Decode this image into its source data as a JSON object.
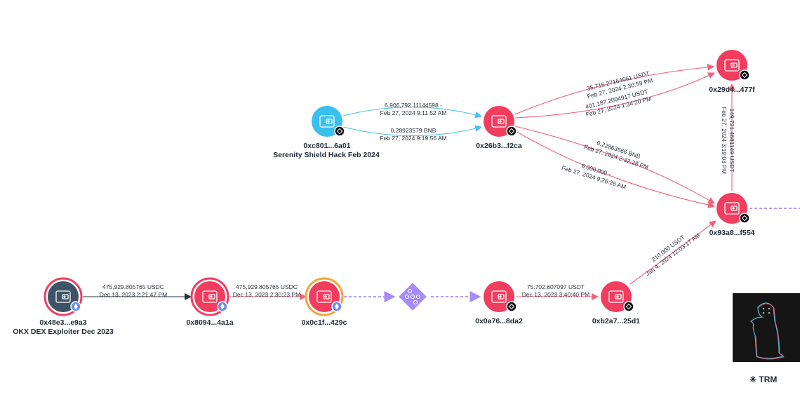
{
  "colors": {
    "exploit": "#f23d5f",
    "source": "#38c0f0",
    "dark": "#3e5466",
    "swap": "#a78bfa",
    "orange": "#f5a33a",
    "edge_red": "#f2607c",
    "edge_blue": "#4cc3ee",
    "edge_dark": "#2b3440"
  },
  "nodes": [
    {
      "id": "c801",
      "address": "0xc801...6a01",
      "entity": "Serenity Shield Hack Feb 2024",
      "type": "source",
      "chain": "bnb-icon"
    },
    {
      "id": "26b3",
      "address": "0x26b3...f2ca",
      "type": "exploit",
      "chain": "bnb-icon"
    },
    {
      "id": "29d4",
      "address": "0x29d4...477f",
      "type": "exploit",
      "chain": "bnb-icon"
    },
    {
      "id": "93a8",
      "address": "0x93a8...f554",
      "type": "exploit",
      "chain": "bnb-icon"
    },
    {
      "id": "48e3",
      "address": "0x48e3...e9a3",
      "entity": "OKX DEX Exploiter Dec 2023",
      "type": "dark",
      "chain": "ethereum-icon"
    },
    {
      "id": "8094",
      "address": "0x8094...4a1a",
      "type": "exploit-ring",
      "chain": "ethereum-icon"
    },
    {
      "id": "0c1f",
      "address": "0x0c1f...429c",
      "type": "orange-ring",
      "chain": "ethereum-icon"
    },
    {
      "id": "swap",
      "address": "",
      "type": "swap"
    },
    {
      "id": "0a76",
      "address": "0x0a76...8da2",
      "type": "exploit",
      "chain": "bnb-icon"
    },
    {
      "id": "b2a7",
      "address": "0xb2a7...25d1",
      "type": "exploit",
      "chain": "bnb-icon"
    }
  ],
  "edges": [
    {
      "from": "c801",
      "to": "26b3",
      "amount": "6,906,792.11144598 -",
      "time": "Feb 27, 2024 9:11:52 AM",
      "style": "blue"
    },
    {
      "from": "c801",
      "to": "26b3",
      "amount": "0.28923579 BNB",
      "time": "Feb 27, 2024 9:19:56 AM",
      "style": "blue"
    },
    {
      "from": "26b3",
      "to": "29d4",
      "amount": "35,715.27164661 USDT",
      "time": "Feb 27, 2024 2:30:59 PM",
      "style": "red"
    },
    {
      "from": "26b3",
      "to": "29d4",
      "amount": "401,187.2004917 USDT",
      "time": "Feb 27, 2024 1:34:20 PM",
      "style": "red"
    },
    {
      "from": "26b3",
      "to": "93a8",
      "amount": "0.22863666 BNB",
      "time": "Feb 27, 2024 2:32:28 PM",
      "style": "red"
    },
    {
      "from": "26b3",
      "to": "93a8",
      "amount": "6,000,000 -",
      "time": "Feb 27, 2024 9:26:26 AM",
      "style": "red"
    },
    {
      "from": "93a8",
      "to": "29d4",
      "amount": "149,721.4681149 USDT",
      "time": "Feb 27, 2024 3:19:03 PM",
      "style": "red"
    },
    {
      "from": "48e3",
      "to": "8094",
      "amount": "475,929.805765 USDC",
      "time": "Dec 13, 2023 2:21:47 PM",
      "style": "dark"
    },
    {
      "from": "8094",
      "to": "0c1f",
      "amount": "475,929.805765 USDC",
      "time": "Dec 13, 2023 2:30:23 PM",
      "style": "red"
    },
    {
      "from": "0c1f",
      "to": "swap",
      "amount": "",
      "time": "",
      "style": "dashed"
    },
    {
      "from": "swap",
      "to": "0a76",
      "amount": "",
      "time": "",
      "style": "dashed"
    },
    {
      "from": "0a76",
      "to": "b2a7",
      "amount": "75,702.607097 USDT",
      "time": "Dec 13, 2023 3:40:40 PM",
      "style": "red"
    },
    {
      "from": "b2a7",
      "to": "93a8",
      "amount": "210,000 USDT",
      "time": "Jan 4, 2024 12:03:17 AM",
      "style": "red"
    },
    {
      "from": "93a8",
      "to": "offscreen",
      "amount": "",
      "time": "",
      "style": "dashed"
    }
  ],
  "footer": {
    "brand": "TRM"
  }
}
